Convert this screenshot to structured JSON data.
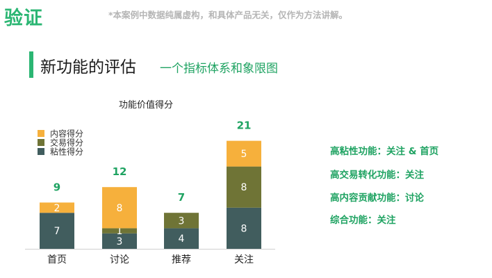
{
  "header": {
    "title": "验证",
    "disclaimer": "*本案例中数据纯属虚构，和具体产品无关，仅作为方法讲解。"
  },
  "section": {
    "title": "新功能的评估",
    "subtitle": "一个指标体系和象限图"
  },
  "colors": {
    "accent": "#2bb673",
    "total_label": "#1fa362",
    "content_score": "#f6b03c",
    "transaction_score": "#6f7436",
    "stickiness_score": "#415d5e",
    "axis": "#cfcfcf"
  },
  "chart_data": {
    "type": "bar",
    "stacked": true,
    "title": "功能价值得分",
    "categories": [
      "首页",
      "讨论",
      "推荐",
      "关注"
    ],
    "series": [
      {
        "name": "粘性得分",
        "values": [
          7,
          3,
          4,
          8
        ]
      },
      {
        "name": "交易得分",
        "values": [
          0,
          1,
          3,
          8
        ]
      },
      {
        "name": "内容得分",
        "values": [
          2,
          8,
          0,
          5
        ]
      }
    ],
    "totals": [
      9,
      12,
      7,
      21
    ],
    "legend_position": "top-left",
    "grid": false
  },
  "insights": [
    "高粘性功能：关注 & 首页",
    "高交易转化功能：关注",
    "高内容贡献功能：讨论",
    "综合功能：关注"
  ]
}
